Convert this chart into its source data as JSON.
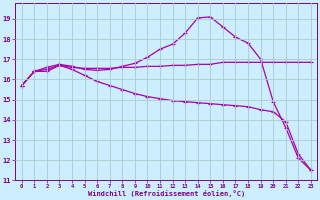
{
  "xlabel": "Windchill (Refroidissement éolien,°C)",
  "x_ticks": [
    0,
    1,
    2,
    3,
    4,
    5,
    6,
    7,
    8,
    9,
    10,
    11,
    12,
    13,
    14,
    15,
    16,
    17,
    18,
    19,
    20,
    21,
    22,
    23
  ],
  "ylim": [
    11,
    19.8
  ],
  "yticks": [
    11,
    12,
    13,
    14,
    15,
    16,
    17,
    18,
    19
  ],
  "background_color": "#cceeff",
  "grid_color": "#aacccc",
  "line_color": "#aa00aa",
  "line1_y": [
    15.7,
    16.4,
    16.4,
    16.7,
    16.6,
    16.55,
    16.55,
    16.55,
    16.6,
    16.6,
    16.65,
    16.65,
    16.7,
    16.7,
    16.75,
    16.75,
    16.85,
    16.85,
    16.85,
    16.85,
    16.85,
    16.85,
    16.85,
    16.85
  ],
  "line2_y": [
    15.7,
    16.4,
    16.6,
    16.75,
    16.65,
    16.5,
    16.45,
    16.5,
    16.65,
    16.8,
    17.1,
    17.5,
    17.75,
    18.3,
    19.05,
    19.1,
    18.6,
    18.1,
    17.8,
    17.0,
    14.9,
    13.6,
    12.1,
    11.5
  ],
  "line3_y": [
    15.7,
    16.4,
    16.5,
    16.7,
    16.5,
    16.2,
    15.9,
    15.7,
    15.5,
    15.3,
    15.15,
    15.05,
    14.95,
    14.9,
    14.85,
    14.8,
    14.75,
    14.7,
    14.65,
    14.5,
    14.4,
    13.9,
    12.3,
    11.5
  ]
}
